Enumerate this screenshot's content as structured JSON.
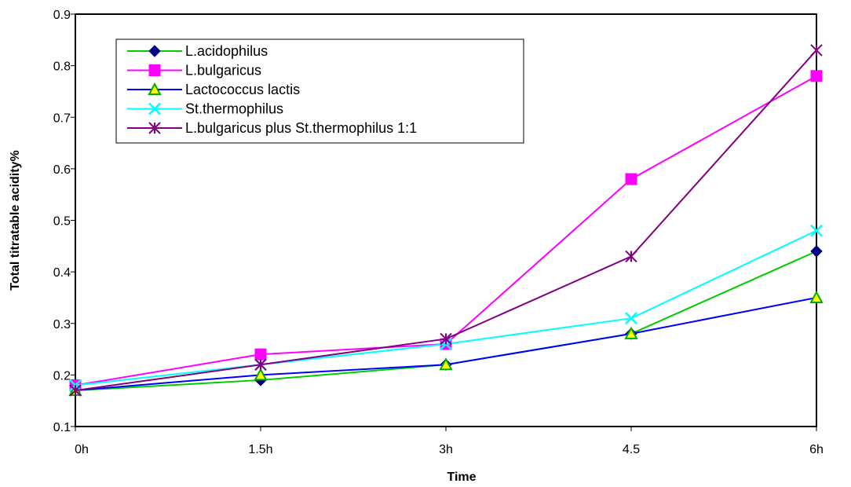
{
  "chart_data": {
    "type": "line",
    "title": "",
    "xlabel": "Time",
    "ylabel": "Total titratable acidity%",
    "categories": [
      "0h",
      "1.5h",
      "3h",
      "4.5",
      "6h"
    ],
    "ylim": [
      0.1,
      0.9
    ],
    "yticks": [
      "0.1",
      "0.2",
      "0.3",
      "0.4",
      "0.5",
      "0.6",
      "0.7",
      "0.8",
      "0.9"
    ],
    "grid": false,
    "legend_position": "top-left",
    "series": [
      {
        "name": "L.acidophilus",
        "values": [
          0.17,
          0.19,
          0.22,
          0.28,
          0.44
        ],
        "color": "#00cc00",
        "marker": "diamond",
        "marker_color": "#000080"
      },
      {
        "name": "L.bulgaricus",
        "values": [
          0.18,
          0.24,
          0.26,
          0.58,
          0.78
        ],
        "color": "#ff00ff",
        "marker": "square",
        "marker_color": "#ff00ff"
      },
      {
        "name": "Lactococcus lactis",
        "values": [
          0.17,
          0.2,
          0.22,
          0.28,
          0.35
        ],
        "color": "#0000ff",
        "marker": "triangle",
        "marker_color": "#ffff00"
      },
      {
        "name": "St.thermophilus",
        "values": [
          0.18,
          0.22,
          0.26,
          0.31,
          0.48
        ],
        "color": "#00ffff",
        "marker": "x",
        "marker_color": "#00ffff"
      },
      {
        "name": "L.bulgaricus plus St.thermophilus 1:1",
        "values": [
          0.17,
          0.22,
          0.27,
          0.43,
          0.83
        ],
        "color": "#800080",
        "marker": "star",
        "marker_color": "#800080"
      }
    ]
  }
}
